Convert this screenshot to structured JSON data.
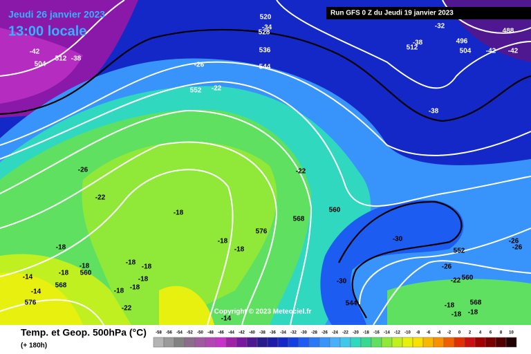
{
  "header": {
    "date": "Jeudi 26 janvier 2023",
    "time": "13:00 locale",
    "run": "Run GFS 0 Z du Jeudi 19 janvier 2023"
  },
  "footer": {
    "title": "Temp. et Geop. 500hPa (°C)",
    "subtitle": "(+ 180h)",
    "copyright": "Copyright © 2023 Meteociel.fr"
  },
  "scale": {
    "labels": [
      "-58",
      "-56",
      "-54",
      "-52",
      "-50",
      "-48",
      "-46",
      "-44",
      "-42",
      "-40",
      "-38",
      "-36",
      "-34",
      "-32",
      "-30",
      "-28",
      "-26",
      "-24",
      "-22",
      "-20",
      "-18",
      "-16",
      "-14",
      "-12",
      "-10",
      "-8",
      "-6",
      "-4",
      "-2",
      "0",
      "2",
      "4",
      "6",
      "8",
      "10"
    ],
    "colors": [
      "#b4b4b4",
      "#9a9a9a",
      "#828282",
      "#8c6e8c",
      "#a05aa0",
      "#b446b4",
      "#c832c8",
      "#a020a8",
      "#7818a0",
      "#501890",
      "#281c8c",
      "#1c1ca8",
      "#1428c8",
      "#1440e0",
      "#1c5cf0",
      "#2878f8",
      "#3894fa",
      "#48b0fa",
      "#40c8e8",
      "#30d8c0",
      "#38d890",
      "#60e060",
      "#90e838",
      "#c0f020",
      "#e8f010",
      "#f8e000",
      "#f8b800",
      "#f89000",
      "#f06000",
      "#e03000",
      "#c81010",
      "#a00000",
      "#780000",
      "#500000",
      "#200000"
    ]
  },
  "map_labels": [
    "520",
    "-34",
    "528",
    "536",
    "544",
    "-26",
    "552",
    "-22",
    "-42",
    "504",
    "512",
    "-38",
    "-32",
    "496",
    "488",
    "-38",
    "512",
    "504",
    "-42",
    "-42",
    "-38",
    "-26",
    "-22",
    "-22",
    "-18",
    "-18",
    "-18",
    "576",
    "568",
    "560",
    "-30",
    "552",
    "-26",
    "-26",
    "-26",
    "560",
    "-22",
    "-30",
    "-18",
    "-18",
    "560",
    "-18",
    "-18",
    "-18",
    "-14",
    "568",
    "-18",
    "-18",
    "-18",
    "-14",
    "576",
    "-22",
    "-14",
    "544",
    "568",
    "-18",
    "-18",
    "-18"
  ]
}
